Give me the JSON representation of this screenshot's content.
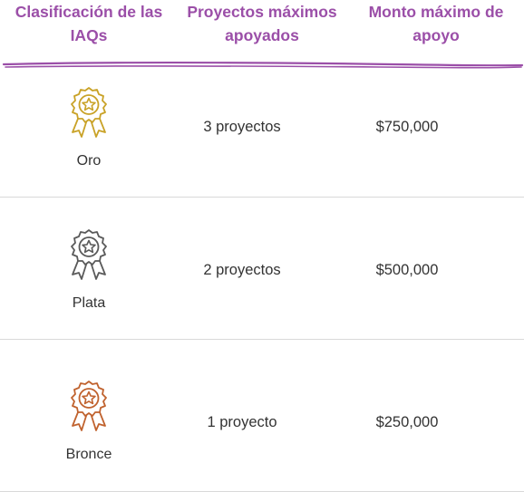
{
  "header": {
    "col1": "Clasificación de las IAQs",
    "col2": "Proyectos máximos apoyados",
    "col3": "Monto máximo de apoyo",
    "accent_color": "#9b4fa8"
  },
  "rows": [
    {
      "tier": "Oro",
      "icon": "gold-award-ribbon-icon",
      "color": "#c9a227",
      "projects": "3 proyectos",
      "amount": "$750,000"
    },
    {
      "tier": "Plata",
      "icon": "silver-award-ribbon-icon",
      "color": "#5a5a5a",
      "projects": "2 proyectos",
      "amount": "$500,000"
    },
    {
      "tier": "Bronce",
      "icon": "bronze-award-ribbon-icon",
      "color": "#c0622e",
      "projects": "1 proyecto",
      "amount": "$250,000"
    }
  ]
}
